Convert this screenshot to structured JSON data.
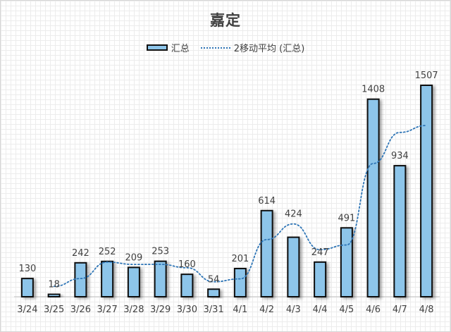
{
  "chart_data": {
    "type": "bar",
    "title": "嘉定",
    "categories": [
      "3/24",
      "3/25",
      "3/26",
      "3/27",
      "3/28",
      "3/29",
      "3/30",
      "3/31",
      "4/1",
      "4/2",
      "4/3",
      "4/4",
      "4/5",
      "4/6",
      "4/7",
      "4/8"
    ],
    "series": [
      {
        "name": "汇总",
        "type": "bar",
        "values": [
          130,
          18,
          242,
          252,
          209,
          253,
          160,
          54,
          201,
          614,
          424,
          247,
          491,
          1408,
          934,
          1507
        ],
        "color": "#8dc5ea",
        "edge_color": "#111111"
      },
      {
        "name": "2移动平均 (汇总)",
        "type": "line",
        "style": "dotted",
        "values": [
          null,
          74,
          130,
          247,
          230.5,
          231,
          206.5,
          107,
          127.5,
          407.5,
          519,
          335.5,
          369,
          949.5,
          1171,
          1220.5
        ],
        "color": "#2e75b6"
      }
    ],
    "data_labels": [
      "130",
      "18",
      "242",
      "252",
      "209",
      "253",
      "160",
      "54",
      "201",
      "614",
      "",
      "247",
      "491",
      "1408",
      "934",
      "1507"
    ],
    "line_labels": [
      {
        "index": 10,
        "text": "424"
      }
    ],
    "ylim": [
      0,
      1507
    ],
    "y_axis_visible": false,
    "grid": false,
    "legend": "top"
  }
}
